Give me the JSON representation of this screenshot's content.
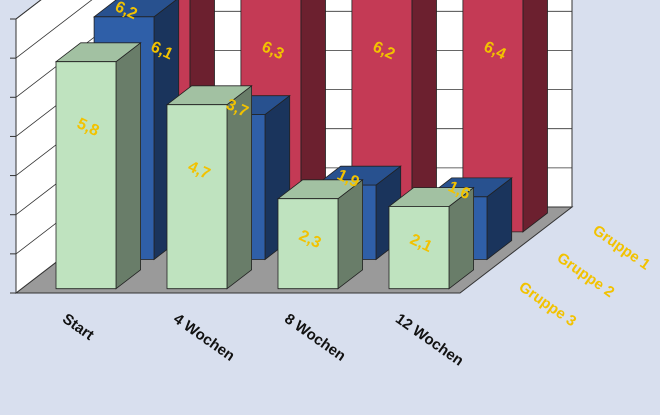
{
  "chart_data": {
    "type": "bar",
    "chart_style": "3d-clustered-depth",
    "categories": [
      "Start",
      "4 Wochen",
      "8 Wochen",
      "12 Wochen"
    ],
    "series": [
      {
        "name": "Gruppe 1",
        "values": [
          6.1,
          6.3,
          6.2,
          6.4
        ],
        "labels": [
          "6,1",
          "6,3",
          "6,2",
          "6,4"
        ],
        "color": "#c43a55"
      },
      {
        "name": "Gruppe 2",
        "values": [
          6.2,
          3.7,
          1.9,
          1.6
        ],
        "labels": [
          "6,2",
          "3,7",
          "1,9",
          "1,6"
        ],
        "color": "#2f5fa8"
      },
      {
        "name": "Gruppe 3",
        "values": [
          5.8,
          4.7,
          2.3,
          2.1
        ],
        "labels": [
          "5,8",
          "4,7",
          "2,3",
          "2,1"
        ],
        "color": "#bfe3bf"
      }
    ],
    "title": "",
    "xlabel": "",
    "ylabel": "",
    "ylim": [
      0,
      7
    ],
    "grid": true,
    "legend": "depth-axis-right",
    "label_color": "#f2c200",
    "wall_color": "#ffffff",
    "floor_color": "#9a9a9a"
  }
}
